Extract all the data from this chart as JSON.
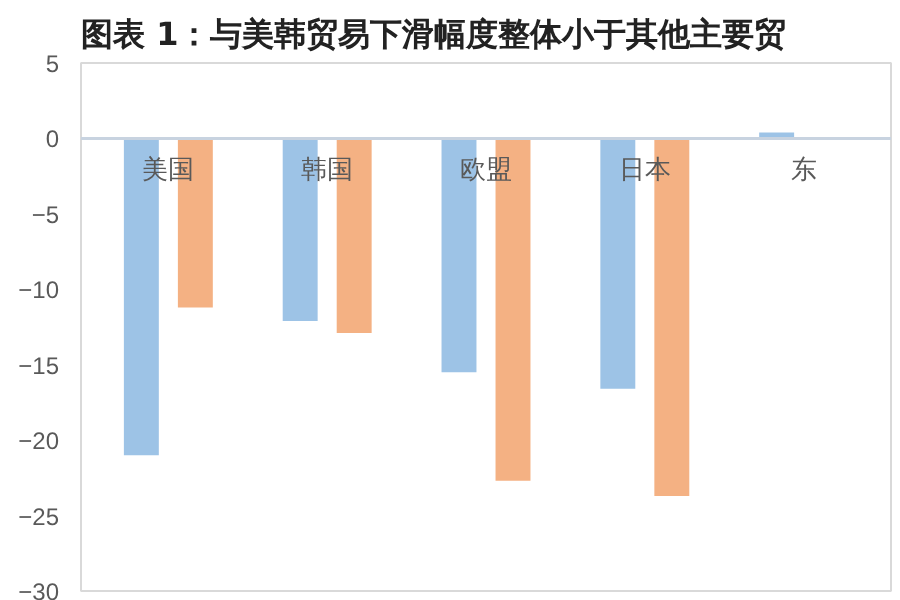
{
  "chart_data": {
    "type": "bar",
    "title": "图表 1：与美韩贸易下滑幅度整体小于其他主要贸",
    "categories": [
      "美国",
      "韩国",
      "欧盟",
      "日本",
      "东"
    ],
    "series": [
      {
        "color": "#9dc3e6",
        "values": [
          -21,
          -12.1,
          -15.5,
          -16.6,
          0.4
        ]
      },
      {
        "color": "#f4b183",
        "values": [
          -11.2,
          -12.9,
          -22.7,
          -23.7,
          null
        ]
      }
    ],
    "ylim": [
      -30,
      5
    ],
    "yticks": [
      5,
      0,
      -5,
      -10,
      -15,
      -20,
      -25,
      -30
    ],
    "grid": false
  }
}
